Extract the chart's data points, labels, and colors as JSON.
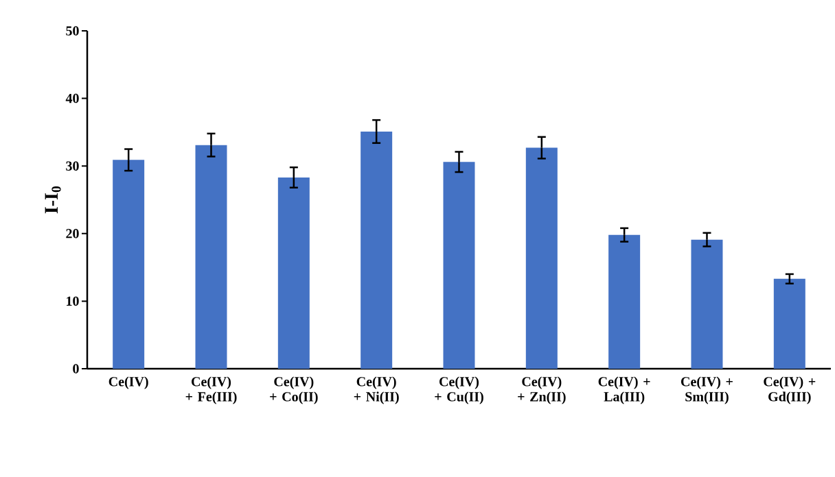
{
  "chart_data": {
    "type": "bar",
    "ylabel": "I-I$_{0}$",
    "categories": [
      "Ce(IV)",
      "Ce(IV) + Fe(III)",
      "Ce(IV) + Co(II)",
      "Ce(IV) + Ni(II)",
      "Ce(IV) + Cu(II)",
      "Ce(IV) + Zn(II)",
      "Ce(IV) + La(III)",
      "Ce(IV) + Sm(III)",
      "Ce(IV) + Gd(III)"
    ],
    "values": [
      30.9,
      33.1,
      28.3,
      35.1,
      30.6,
      32.7,
      19.8,
      19.1,
      13.3
    ],
    "errors": [
      1.6,
      1.7,
      1.5,
      1.7,
      1.5,
      1.6,
      1.0,
      1.0,
      0.7
    ],
    "color": "#4472c4",
    "ylim": [
      0,
      50
    ],
    "yticks": [
      0,
      10,
      20,
      30,
      40,
      50
    ],
    "grid": false
  }
}
